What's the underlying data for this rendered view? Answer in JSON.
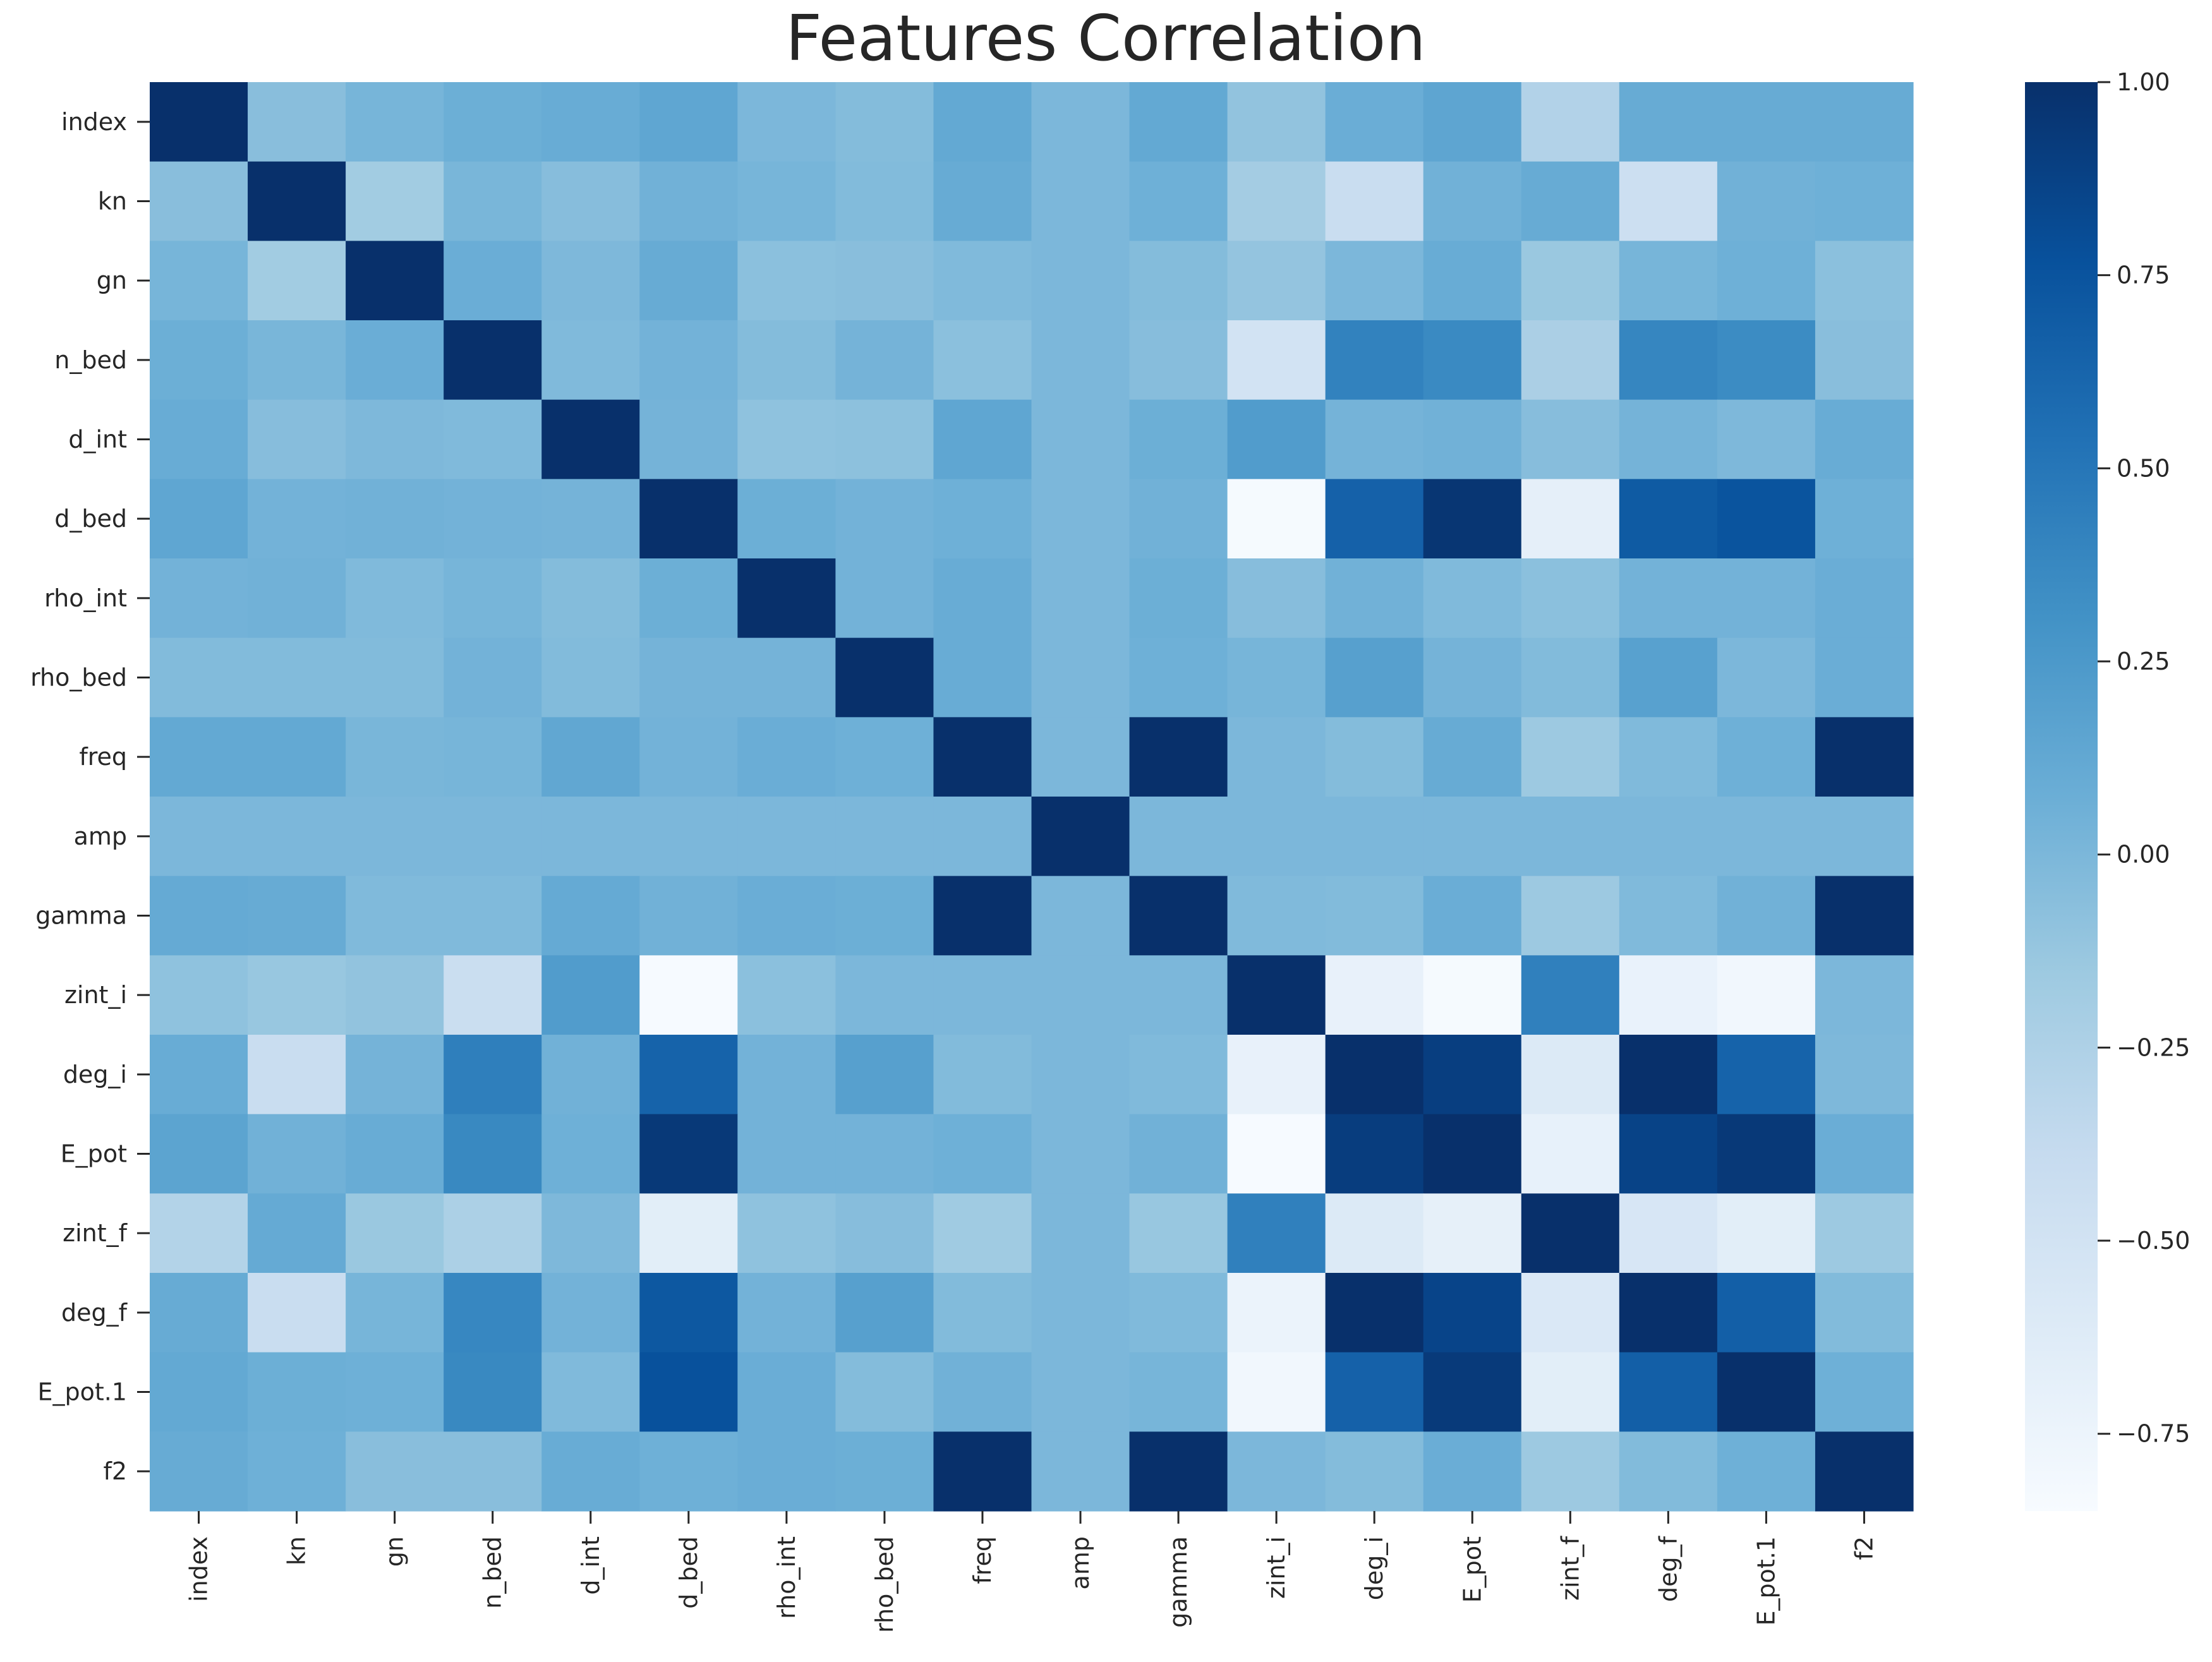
{
  "chart_data": {
    "type": "heatmap",
    "title": "Features Correlation",
    "xlabel": "",
    "ylabel": "",
    "colormap": "Blues",
    "colormap_stops": [
      "#f7fbff",
      "#deebf7",
      "#c6dbef",
      "#9ecae1",
      "#6baed6",
      "#4292c6",
      "#2171b5",
      "#08519c",
      "#08306b"
    ],
    "vmin": -0.85,
    "vmax": 1.0,
    "labels": [
      "index",
      "kn",
      "gn",
      "n_bed",
      "d_int",
      "d_bed",
      "rho_int",
      "rho_bed",
      "freq",
      "amp",
      "gamma",
      "zint_i",
      "deg_i",
      "E_pot",
      "zint_f",
      "deg_f",
      "E_pot.1",
      "f2"
    ],
    "matrix": [
      [
        1.0,
        -0.06,
        0.02,
        0.07,
        0.09,
        0.14,
        0.0,
        -0.04,
        0.12,
        0.0,
        0.12,
        -0.1,
        0.08,
        0.15,
        -0.27,
        0.1,
        0.1,
        0.1
      ],
      [
        -0.06,
        1.0,
        -0.18,
        0.01,
        -0.05,
        0.05,
        0.02,
        -0.03,
        0.1,
        0.0,
        0.06,
        -0.19,
        -0.42,
        0.05,
        0.1,
        -0.45,
        0.05,
        0.06
      ],
      [
        0.02,
        -0.18,
        1.0,
        0.08,
        -0.01,
        0.1,
        -0.07,
        -0.06,
        -0.02,
        0.0,
        -0.04,
        -0.11,
        0.0,
        0.09,
        -0.14,
        0.02,
        0.06,
        -0.07
      ],
      [
        0.07,
        0.01,
        0.08,
        1.0,
        -0.02,
        0.04,
        -0.04,
        0.03,
        -0.07,
        0.0,
        -0.05,
        -0.5,
        0.42,
        0.36,
        -0.23,
        0.39,
        0.35,
        -0.06
      ],
      [
        0.09,
        -0.05,
        -0.01,
        -0.02,
        1.0,
        0.03,
        -0.09,
        -0.08,
        0.14,
        0.0,
        0.07,
        0.22,
        0.03,
        0.05,
        -0.05,
        0.03,
        -0.01,
        0.09
      ],
      [
        0.14,
        0.04,
        0.05,
        0.04,
        0.03,
        1.0,
        0.07,
        0.04,
        0.06,
        0.0,
        0.05,
        -0.83,
        0.65,
        0.96,
        -0.68,
        0.7,
        0.75,
        0.06
      ],
      [
        0.04,
        0.05,
        -0.02,
        0.02,
        -0.04,
        0.07,
        1.0,
        0.04,
        0.09,
        0.0,
        0.07,
        -0.05,
        0.05,
        -0.02,
        -0.07,
        0.04,
        0.04,
        0.08
      ],
      [
        -0.03,
        -0.03,
        -0.03,
        0.04,
        -0.03,
        0.03,
        0.03,
        1.0,
        0.09,
        0.0,
        0.06,
        0.02,
        0.19,
        0.03,
        -0.03,
        0.18,
        0.0,
        0.08
      ],
      [
        0.12,
        0.12,
        0.01,
        0.02,
        0.13,
        0.04,
        0.08,
        0.06,
        1.0,
        0.0,
        1.0,
        0.0,
        -0.04,
        0.1,
        -0.15,
        -0.02,
        0.06,
        1.0
      ],
      [
        0.0,
        0.0,
        0.0,
        0.0,
        0.0,
        0.0,
        0.0,
        0.0,
        0.0,
        1.0,
        0.0,
        0.0,
        0.0,
        0.0,
        0.0,
        0.0,
        0.0,
        0.0
      ],
      [
        0.11,
        0.1,
        -0.02,
        -0.02,
        0.11,
        0.05,
        0.08,
        0.07,
        1.0,
        0.0,
        1.0,
        -0.02,
        -0.03,
        0.08,
        -0.15,
        -0.02,
        0.05,
        1.0
      ],
      [
        -0.09,
        -0.13,
        -0.1,
        -0.43,
        0.22,
        -0.84,
        -0.07,
        0.0,
        0.0,
        0.0,
        0.0,
        1.0,
        -0.71,
        -0.83,
        0.43,
        -0.72,
        -0.79,
        0.0
      ],
      [
        0.09,
        -0.42,
        0.03,
        0.44,
        0.05,
        0.64,
        0.04,
        0.19,
        -0.03,
        0.0,
        -0.02,
        -0.71,
        1.0,
        0.9,
        -0.6,
        1.0,
        0.64,
        -0.01
      ],
      [
        0.16,
        0.05,
        0.09,
        0.37,
        0.06,
        0.94,
        0.04,
        0.04,
        0.06,
        0.0,
        0.05,
        -0.84,
        0.91,
        1.0,
        -0.7,
        0.87,
        0.94,
        0.08
      ],
      [
        -0.28,
        0.11,
        -0.14,
        -0.24,
        -0.01,
        -0.66,
        -0.09,
        -0.05,
        -0.17,
        0.0,
        -0.13,
        0.43,
        -0.6,
        -0.69,
        1.0,
        -0.55,
        -0.66,
        -0.15
      ],
      [
        0.1,
        -0.42,
        0.02,
        0.38,
        0.04,
        0.72,
        0.04,
        0.19,
        -0.03,
        0.0,
        -0.02,
        -0.74,
        1.0,
        0.86,
        -0.58,
        1.0,
        0.67,
        -0.03
      ],
      [
        0.12,
        0.07,
        0.06,
        0.37,
        -0.02,
        0.77,
        0.08,
        -0.04,
        0.05,
        0.0,
        0.02,
        -0.79,
        0.65,
        0.93,
        -0.66,
        0.67,
        1.0,
        0.06
      ],
      [
        0.1,
        0.06,
        -0.06,
        -0.06,
        0.09,
        0.06,
        0.08,
        0.07,
        1.0,
        0.0,
        1.0,
        0.0,
        -0.04,
        0.08,
        -0.15,
        -0.03,
        0.06,
        1.0
      ]
    ],
    "colorbar": {
      "ticks": [
        1.0,
        0.75,
        0.5,
        0.25,
        0.0,
        -0.25,
        -0.5,
        -0.75
      ],
      "tick_labels": [
        "1.00",
        "0.75",
        "0.50",
        "0.25",
        "0.00",
        "−0.25",
        "−0.50",
        "−0.75"
      ]
    },
    "grid": false,
    "legend": "colorbar-right"
  }
}
